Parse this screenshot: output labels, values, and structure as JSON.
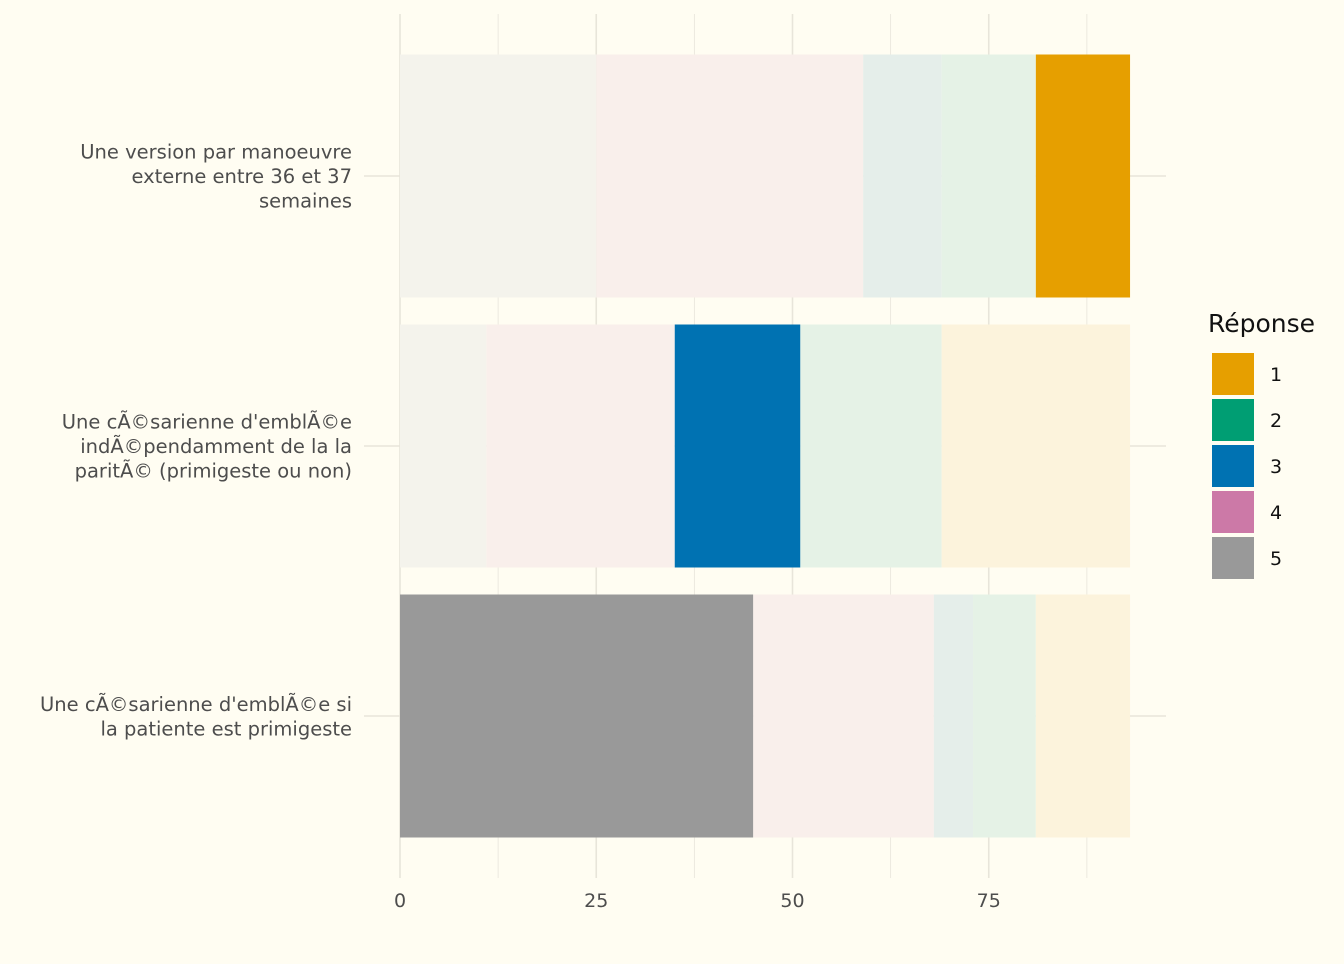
{
  "chart_data": {
    "type": "bar",
    "orientation": "horizontal",
    "stacked": true,
    "title": "",
    "xlabel": "",
    "ylabel": "",
    "xlim": [
      0,
      93
    ],
    "x_ticks": [
      0,
      25,
      50,
      75
    ],
    "grid": true,
    "categories": [
      "Une version par manoeuvre externe entre 36 et 37 semaines",
      "Une cÃ©sarienne d'emblÃ©e indÃ©pendamment de la la paritÃ© (primigeste ou non)",
      "Une cÃ©sarienne d'emblÃ©e si la patiente est primigeste"
    ],
    "category_label_lines": [
      [
        "Une version par manoeuvre",
        "externe entre 36 et 37",
        "semaines"
      ],
      [
        "Une cÃ©sarienne d'emblÃ©e",
        "indÃ©pendamment de la la",
        "paritÃ© (primigeste ou non)"
      ],
      [
        "Une cÃ©sarienne d'emblÃ©e si",
        "la patiente est primigeste"
      ]
    ],
    "highlighted_response": [
      "1",
      "3",
      "5"
    ],
    "segment_order": [
      "5",
      "4",
      "3",
      "2",
      "1"
    ],
    "series": [
      {
        "name": "5",
        "values": [
          25,
          11,
          45
        ]
      },
      {
        "name": "4",
        "values": [
          34,
          24,
          23
        ]
      },
      {
        "name": "3",
        "values": [
          10,
          16,
          5
        ]
      },
      {
        "name": "2",
        "values": [
          12,
          18,
          8
        ]
      },
      {
        "name": "1",
        "values": [
          12,
          24,
          12
        ]
      }
    ],
    "colors": {
      "1": "#E69F00",
      "2": "#009E73",
      "3": "#0072B2",
      "4": "#CC79A7",
      "5": "#999999"
    },
    "faded_colors": {
      "1": "#fcf3dc",
      "2": "#e5f2e6",
      "3": "#e5eeea",
      "4": "#f9efeb",
      "5": "#f4f3ec"
    },
    "legend": {
      "title": "Réponse",
      "position": "right",
      "entries": [
        "1",
        "2",
        "3",
        "4",
        "5"
      ]
    }
  }
}
